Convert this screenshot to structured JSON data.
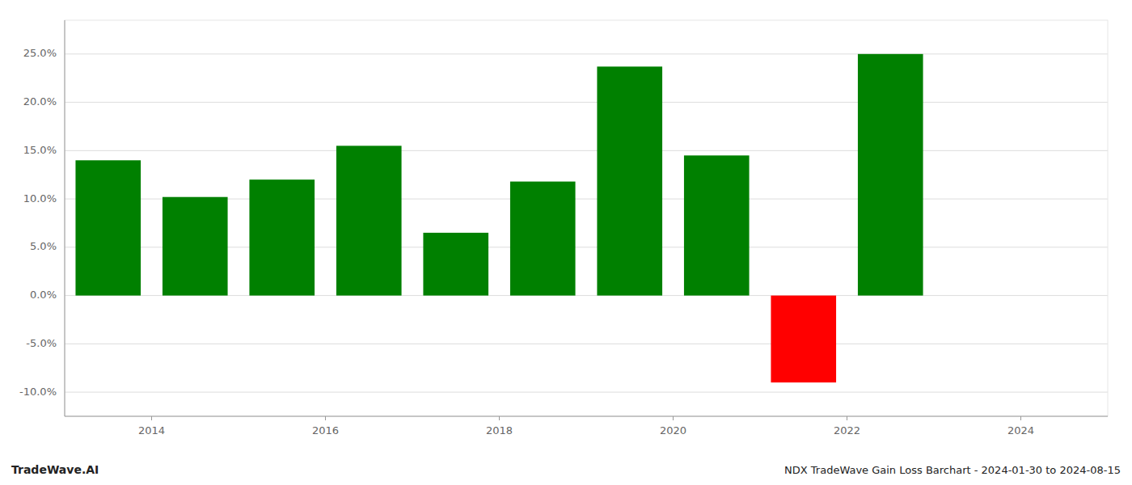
{
  "chart_data": {
    "type": "bar",
    "title": "NDX TradeWave Gain Loss Barchart - 2024-01-30 to 2024-08-15",
    "annotations": [
      "TradeWave.AI"
    ],
    "x": [
      2013.5,
      2014.5,
      2015.5,
      2016.5,
      2017.5,
      2018.5,
      2019.5,
      2020.5,
      2021.5,
      2022.5
    ],
    "values": [
      0.14,
      0.102,
      0.12,
      0.155,
      0.065,
      0.118,
      0.237,
      0.145,
      -0.09,
      0.25
    ],
    "colors": [
      "#008000",
      "#008000",
      "#008000",
      "#008000",
      "#008000",
      "#008000",
      "#008000",
      "#008000",
      "#ff0000",
      "#008000"
    ],
    "xlim": [
      2013.0,
      2025.0
    ],
    "xticks": [
      2014,
      2016,
      2018,
      2020,
      2022,
      2024
    ],
    "ylim": [
      -0.125,
      0.285
    ],
    "yticks": [
      {
        "value": -0.1,
        "label": "-10.0%"
      },
      {
        "value": -0.05,
        "label": "-5.0%"
      },
      {
        "value": 0.0,
        "label": "0.0%"
      },
      {
        "value": 0.05,
        "label": "5.0%"
      },
      {
        "value": 0.1,
        "label": "10.0%"
      },
      {
        "value": 0.15,
        "label": "15.0%"
      },
      {
        "value": 0.2,
        "label": "20.0%"
      },
      {
        "value": 0.25,
        "label": "25.0%"
      }
    ],
    "grid": true
  }
}
